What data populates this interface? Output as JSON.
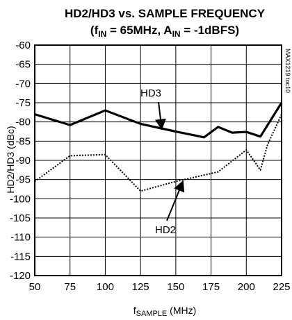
{
  "chart_data": {
    "type": "line",
    "title": "HD2/HD3 vs. SAMPLE FREQUENCY",
    "subtitle": {
      "f_base": "f",
      "f_sub": "IN",
      "f_value": " = 65MHz, A",
      "a_sub": "IN",
      "a_value": " = -1dBFS)",
      "open_paren": "("
    },
    "ylabel": "HD2/HD3 (dBc)",
    "xlabel": {
      "base": "f",
      "sub": "SAMPLE",
      "unit": " (MHz)"
    },
    "side_note": "MAX1219 toc10",
    "xlim": [
      50,
      225
    ],
    "ylim": [
      -120,
      -60
    ],
    "grid": true,
    "x_ticks": [
      "50",
      "75",
      "100",
      "125",
      "150",
      "175",
      "200",
      "225"
    ],
    "y_ticks": [
      "-60",
      "-65",
      "-70",
      "-75",
      "-80",
      "-85",
      "-90",
      "-95",
      "-100",
      "-105",
      "-110",
      "-115",
      "-120"
    ],
    "series": [
      {
        "name": "HD3",
        "style": "solid",
        "color": "#000000",
        "x": [
          50,
          75,
          100,
          125,
          150,
          170,
          180,
          190,
          200,
          210,
          225
        ],
        "y": [
          -78,
          -80.8,
          -77,
          -80.5,
          -82.5,
          -84,
          -81.3,
          -82.8,
          -82.6,
          -83.8,
          -75
        ]
      },
      {
        "name": "HD2",
        "style": "dotted",
        "color": "#000000",
        "x": [
          50,
          75,
          100,
          125,
          150,
          180,
          200,
          210,
          215,
          225
        ],
        "y": [
          -95.5,
          -88.8,
          -88.5,
          -98,
          -95.5,
          -93,
          -87.3,
          -92.5,
          -86,
          -78
        ]
      }
    ]
  }
}
